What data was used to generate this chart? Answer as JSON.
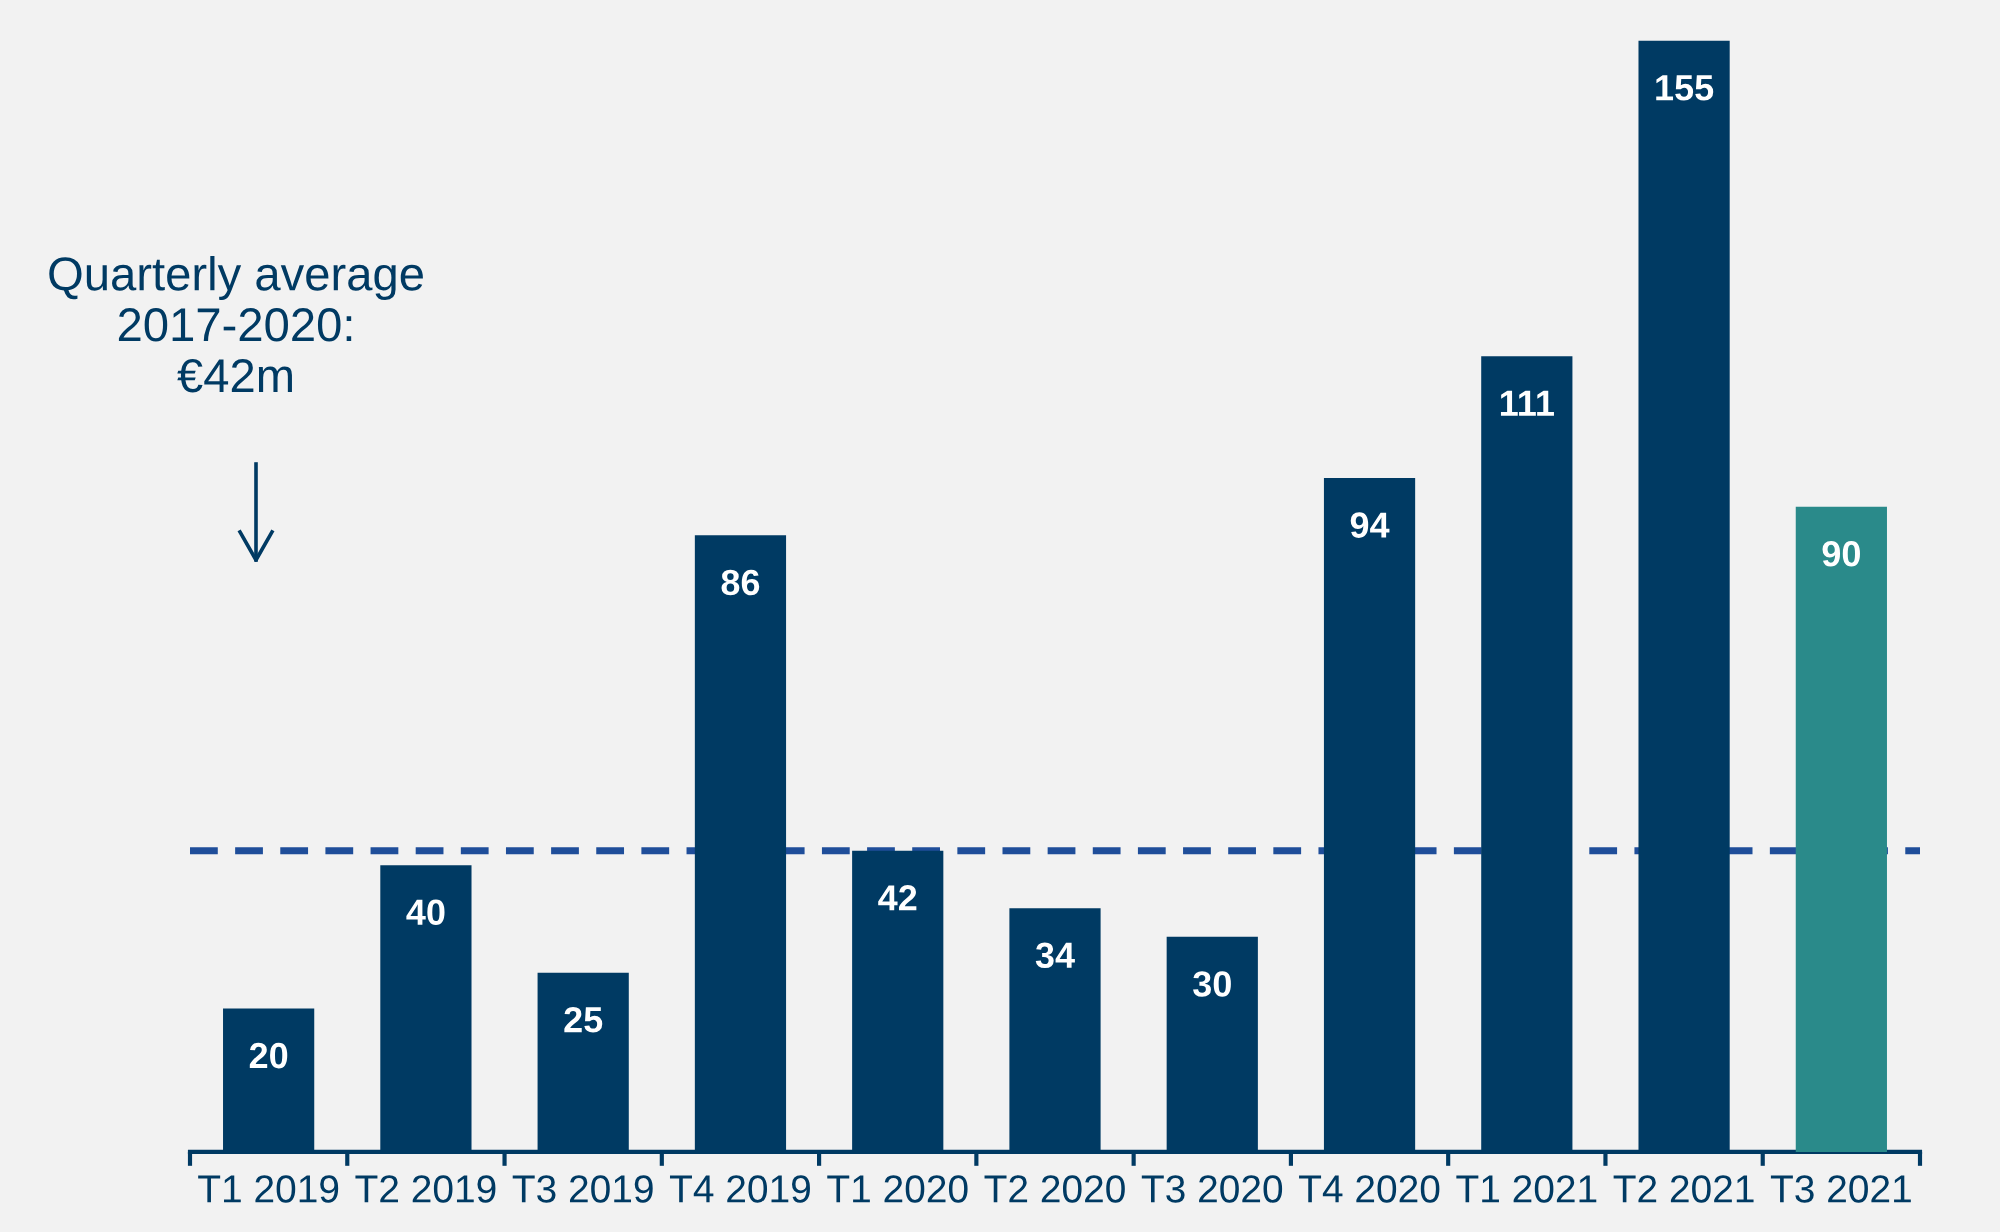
{
  "chart_data": {
    "type": "bar",
    "categories": [
      "T1 2019",
      "T2 2019",
      "T3 2019",
      "T4 2019",
      "T1 2020",
      "T2 2020",
      "T3 2020",
      "T4 2020",
      "T1 2021",
      "T2 2021",
      "T3 2021"
    ],
    "values": [
      20,
      40,
      25,
      86,
      42,
      34,
      30,
      94,
      111,
      155,
      90
    ],
    "colors": [
      "#003a63",
      "#003a63",
      "#003a63",
      "#003a63",
      "#003a63",
      "#003a63",
      "#003a63",
      "#003a63",
      "#003a63",
      "#003a63",
      "#2a8a8a"
    ],
    "data_labels": true,
    "ref_lines": [
      {
        "axis": "y",
        "value": 42,
        "color": "#1f4e9a",
        "line_style": "dashed"
      }
    ],
    "annotations": [
      "Quarterly average\n2017-2020:\n€42m"
    ],
    "grid": false
  }
}
